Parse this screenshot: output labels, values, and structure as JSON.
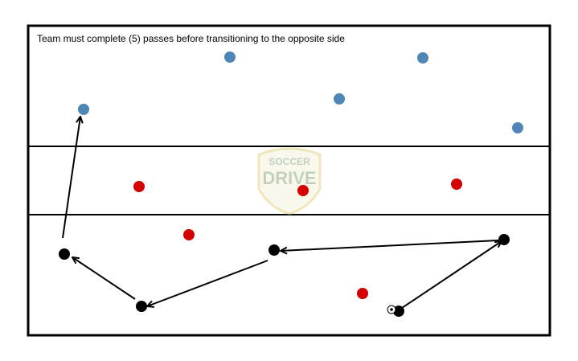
{
  "header": {
    "instruction": "Team must complete (5) passes before transitioning to the opposite side"
  },
  "watermark": {
    "top": "SOCCER",
    "bottom": "DRIVE"
  }
}
